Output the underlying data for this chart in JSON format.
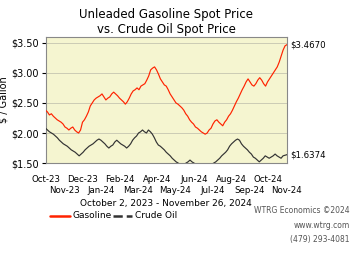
{
  "title_line1": "Unleaded Gasoline Spot Price",
  "title_line2": "vs. Crude Oil Spot Price",
  "ylabel": "$ / Gallon",
  "date_label": "October 2, 2023 - November 26, 2024",
  "watermark_line1": "WTRG Economics ©2024",
  "watermark_line2": "www.wtrg.com",
  "watermark_line3": "(479) 293-4081",
  "end_label_gasoline": "$3.4670",
  "end_label_crude": "$1.6374",
  "ylim": [
    1.5,
    3.6
  ],
  "yticks": [
    1.5,
    2.0,
    2.5,
    3.0,
    3.5
  ],
  "ytick_labels": [
    "$1.50",
    "$2.00",
    "$2.50",
    "$3.00",
    "$3.50"
  ],
  "background_color": "#f5f5d0",
  "gasoline_color": "#ff2200",
  "crude_color": "#333333",
  "title_fontsize": 8.5,
  "axis_fontsize": 7,
  "xtick_labels_top": [
    "Oct-23",
    "Dec-23",
    "Feb-24",
    "Apr-24",
    "Jun-24",
    "Aug-24",
    "Oct-24"
  ],
  "xtick_labels_bot": [
    "Nov-23",
    "Jan-24",
    "Mar-24",
    "May-24",
    "Jul-24",
    "Sep-24",
    "Nov-24"
  ],
  "gasoline_data": [
    2.38,
    2.35,
    2.3,
    2.32,
    2.28,
    2.25,
    2.22,
    2.2,
    2.18,
    2.15,
    2.1,
    2.08,
    2.05,
    2.08,
    2.1,
    2.05,
    2.02,
    2.0,
    2.05,
    2.18,
    2.22,
    2.28,
    2.35,
    2.45,
    2.5,
    2.55,
    2.58,
    2.6,
    2.62,
    2.65,
    2.6,
    2.55,
    2.58,
    2.6,
    2.65,
    2.68,
    2.65,
    2.62,
    2.58,
    2.55,
    2.52,
    2.48,
    2.52,
    2.58,
    2.65,
    2.7,
    2.72,
    2.75,
    2.72,
    2.78,
    2.8,
    2.82,
    2.88,
    2.95,
    3.05,
    3.08,
    3.1,
    3.05,
    2.98,
    2.9,
    2.85,
    2.8,
    2.78,
    2.72,
    2.65,
    2.6,
    2.55,
    2.5,
    2.48,
    2.45,
    2.42,
    2.38,
    2.32,
    2.28,
    2.22,
    2.18,
    2.15,
    2.1,
    2.08,
    2.05,
    2.02,
    2.0,
    1.98,
    2.0,
    2.05,
    2.08,
    2.15,
    2.2,
    2.22,
    2.18,
    2.15,
    2.12,
    2.18,
    2.22,
    2.28,
    2.32,
    2.38,
    2.45,
    2.52,
    2.58,
    2.65,
    2.72,
    2.78,
    2.85,
    2.9,
    2.85,
    2.8,
    2.78,
    2.82,
    2.88,
    2.92,
    2.88,
    2.82,
    2.78,
    2.85,
    2.9,
    2.95,
    3.0,
    3.05,
    3.1,
    3.18,
    3.28,
    3.38,
    3.45,
    3.47
  ],
  "crude_data": [
    2.08,
    2.05,
    2.02,
    2.0,
    1.98,
    1.95,
    1.92,
    1.88,
    1.85,
    1.82,
    1.8,
    1.78,
    1.75,
    1.72,
    1.7,
    1.68,
    1.65,
    1.62,
    1.65,
    1.68,
    1.72,
    1.75,
    1.78,
    1.8,
    1.82,
    1.85,
    1.88,
    1.9,
    1.88,
    1.85,
    1.82,
    1.78,
    1.75,
    1.78,
    1.8,
    1.85,
    1.88,
    1.85,
    1.82,
    1.8,
    1.78,
    1.75,
    1.78,
    1.82,
    1.88,
    1.92,
    1.95,
    2.0,
    2.02,
    2.05,
    2.02,
    2.0,
    2.05,
    2.02,
    1.98,
    1.92,
    1.85,
    1.8,
    1.78,
    1.75,
    1.72,
    1.68,
    1.65,
    1.62,
    1.58,
    1.55,
    1.52,
    1.5,
    1.48,
    1.45,
    1.48,
    1.5,
    1.52,
    1.55,
    1.52,
    1.5,
    1.48,
    1.45,
    1.42,
    1.4,
    1.38,
    1.4,
    1.42,
    1.45,
    1.48,
    1.5,
    1.52,
    1.55,
    1.58,
    1.62,
    1.65,
    1.68,
    1.72,
    1.78,
    1.82,
    1.85,
    1.88,
    1.9,
    1.88,
    1.82,
    1.78,
    1.75,
    1.72,
    1.68,
    1.65,
    1.6,
    1.58,
    1.55,
    1.52,
    1.55,
    1.58,
    1.62,
    1.6,
    1.58,
    1.6,
    1.62,
    1.65,
    1.62,
    1.6,
    1.58,
    1.62,
    1.63,
    1.64
  ]
}
